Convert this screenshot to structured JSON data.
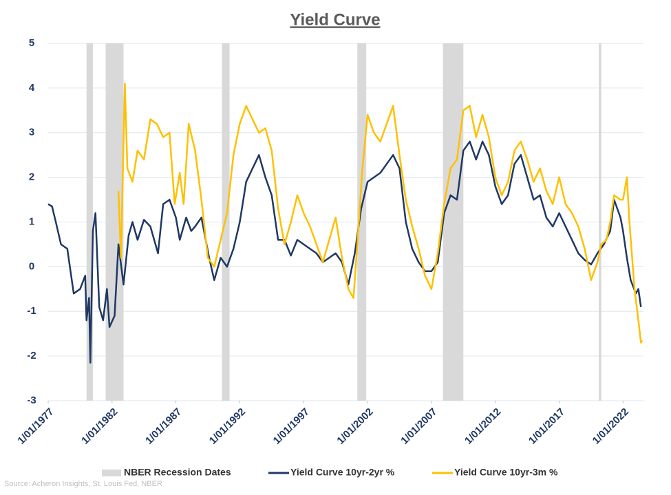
{
  "chart_data": {
    "type": "line",
    "title": "Yield Curve",
    "source": "Source: Acheron Insights, St. Louis Fed, NBER",
    "xlim": [
      1977,
      2023.6
    ],
    "xticks": [
      {
        "value": 1977,
        "label": "1/01/1977"
      },
      {
        "value": 1982,
        "label": "1/01/1982"
      },
      {
        "value": 1987,
        "label": "1/01/1987"
      },
      {
        "value": 1992,
        "label": "1/01/1992"
      },
      {
        "value": 1997,
        "label": "1/01/1997"
      },
      {
        "value": 2002,
        "label": "1/01/2002"
      },
      {
        "value": 2007,
        "label": "1/01/2007"
      },
      {
        "value": 2012,
        "label": "1/01/2012"
      },
      {
        "value": 2017,
        "label": "1/01/2017"
      },
      {
        "value": 2022,
        "label": "1/01/2022"
      }
    ],
    "ylim": [
      -3,
      5
    ],
    "yticks": [
      -3,
      -2,
      -1,
      0,
      1,
      2,
      3,
      4,
      5
    ],
    "grid": true,
    "legend": "bottom",
    "recessions": {
      "name": "NBER Recession Dates",
      "color": "#d9d9d9",
      "starts": [
        1980.0,
        1981.5,
        1990.6,
        2001.2,
        2007.9,
        2020.1
      ],
      "ends": [
        1980.5,
        1982.9,
        1991.2,
        2001.9,
        2009.5,
        2020.3
      ]
    },
    "series": [
      {
        "name": "Yield Curve 10yr-2yr %",
        "color": "#1f3864",
        "x": [
          1977.0,
          1977.3,
          1977.6,
          1978.0,
          1978.5,
          1979.0,
          1979.5,
          1979.9,
          1980.0,
          1980.2,
          1980.3,
          1980.5,
          1980.7,
          1981.0,
          1981.3,
          1981.6,
          1981.8,
          1982.2,
          1982.5,
          1982.9,
          1983.3,
          1983.6,
          1984.0,
          1984.5,
          1985.0,
          1985.6,
          1986.0,
          1986.5,
          1987.0,
          1987.3,
          1987.8,
          1988.2,
          1988.5,
          1989.0,
          1989.6,
          1990.0,
          1990.5,
          1991.0,
          1991.5,
          1992.0,
          1992.5,
          1993.0,
          1993.5,
          1994.0,
          1994.5,
          1995.0,
          1995.5,
          1996.0,
          1996.5,
          1997.0,
          1997.5,
          1998.0,
          1998.5,
          1999.0,
          1999.5,
          2000.0,
          2000.5,
          2001.0,
          2001.5,
          2002.0,
          2002.5,
          2003.0,
          2003.5,
          2004.0,
          2004.5,
          2005.0,
          2005.5,
          2006.0,
          2006.5,
          2007.0,
          2007.5,
          2008.0,
          2008.5,
          2009.0,
          2009.5,
          2010.0,
          2010.5,
          2011.0,
          2011.5,
          2012.0,
          2012.5,
          2013.0,
          2013.5,
          2014.0,
          2014.5,
          2015.0,
          2015.5,
          2016.0,
          2016.5,
          2017.0,
          2017.5,
          2018.0,
          2018.5,
          2019.0,
          2019.5,
          2020.0,
          2020.5,
          2021.0,
          2021.3,
          2021.8,
          2022.0,
          2022.3,
          2022.6,
          2023.0,
          2023.2,
          2023.4
        ],
        "values": [
          1.4,
          1.35,
          1.0,
          0.5,
          0.4,
          -0.6,
          -0.5,
          -0.2,
          -1.2,
          -0.7,
          -2.15,
          0.8,
          1.2,
          -0.9,
          -1.2,
          -0.5,
          -1.35,
          -1.1,
          0.5,
          -0.4,
          0.7,
          1.0,
          0.6,
          1.05,
          0.9,
          0.3,
          1.4,
          1.5,
          1.1,
          0.6,
          1.1,
          0.8,
          0.9,
          1.1,
          0.2,
          -0.3,
          0.2,
          0.0,
          0.4,
          1.0,
          1.9,
          2.2,
          2.5,
          2.0,
          1.6,
          0.6,
          0.6,
          0.25,
          0.6,
          0.5,
          0.4,
          0.3,
          0.1,
          0.2,
          0.3,
          0.1,
          -0.4,
          0.3,
          1.3,
          1.9,
          2.0,
          2.1,
          2.3,
          2.5,
          2.2,
          1.0,
          0.4,
          0.1,
          -0.1,
          -0.1,
          0.1,
          1.2,
          1.6,
          1.5,
          2.6,
          2.8,
          2.4,
          2.8,
          2.5,
          1.8,
          1.4,
          1.6,
          2.3,
          2.5,
          2.0,
          1.5,
          1.6,
          1.1,
          0.9,
          1.2,
          0.9,
          0.6,
          0.3,
          0.15,
          0.05,
          0.3,
          0.5,
          0.8,
          1.5,
          1.1,
          0.8,
          0.2,
          -0.3,
          -0.6,
          -0.5,
          -0.9
        ]
      },
      {
        "name": "Yield Curve 10yr-3m %",
        "color": "#ffc000",
        "x": [
          1982.5,
          1982.7,
          1983.0,
          1983.2,
          1983.6,
          1984.0,
          1984.5,
          1985.0,
          1985.5,
          1986.0,
          1986.5,
          1986.9,
          1987.3,
          1987.6,
          1988.0,
          1988.5,
          1989.0,
          1989.5,
          1990.0,
          1990.5,
          1991.0,
          1991.5,
          1992.0,
          1992.5,
          1993.0,
          1993.5,
          1994.0,
          1994.5,
          1995.0,
          1995.5,
          1996.0,
          1996.5,
          1997.0,
          1997.5,
          1998.0,
          1998.5,
          1999.0,
          1999.5,
          2000.0,
          2000.5,
          2000.9,
          2001.2,
          2001.6,
          2002.0,
          2002.5,
          2003.0,
          2003.5,
          2004.0,
          2004.5,
          2005.0,
          2005.5,
          2006.0,
          2006.5,
          2007.0,
          2007.5,
          2008.0,
          2008.5,
          2009.0,
          2009.5,
          2010.0,
          2010.5,
          2011.0,
          2011.5,
          2012.0,
          2012.5,
          2013.0,
          2013.5,
          2014.0,
          2014.5,
          2015.0,
          2015.5,
          2016.0,
          2016.5,
          2017.0,
          2017.5,
          2018.0,
          2018.5,
          2019.0,
          2019.5,
          2020.0,
          2020.3,
          2020.7,
          2021.0,
          2021.3,
          2021.8,
          2022.0,
          2022.3,
          2022.5,
          2022.9,
          2023.2,
          2023.4,
          2023.5
        ],
        "values": [
          1.7,
          0.2,
          4.1,
          2.2,
          1.9,
          2.6,
          2.4,
          3.3,
          3.2,
          2.9,
          3.0,
          1.4,
          2.1,
          1.4,
          3.2,
          2.6,
          1.5,
          0.2,
          0.0,
          0.6,
          1.2,
          2.5,
          3.2,
          3.6,
          3.3,
          3.0,
          3.1,
          2.6,
          1.3,
          0.5,
          1.0,
          1.6,
          1.2,
          0.9,
          0.5,
          0.1,
          0.6,
          1.1,
          0.2,
          -0.5,
          -0.7,
          0.5,
          2.2,
          3.4,
          3.0,
          2.8,
          3.2,
          3.6,
          2.5,
          1.5,
          0.9,
          0.4,
          -0.2,
          -0.5,
          0.3,
          1.4,
          2.2,
          2.4,
          3.5,
          3.6,
          2.9,
          3.4,
          2.9,
          2.0,
          1.6,
          1.9,
          2.6,
          2.8,
          2.4,
          1.9,
          2.2,
          1.7,
          1.4,
          2.0,
          1.4,
          1.2,
          0.9,
          0.4,
          -0.3,
          0.1,
          0.5,
          0.6,
          1.0,
          1.6,
          1.5,
          1.5,
          2.0,
          1.0,
          -0.5,
          -1.2,
          -1.7,
          -1.65
        ]
      }
    ]
  }
}
